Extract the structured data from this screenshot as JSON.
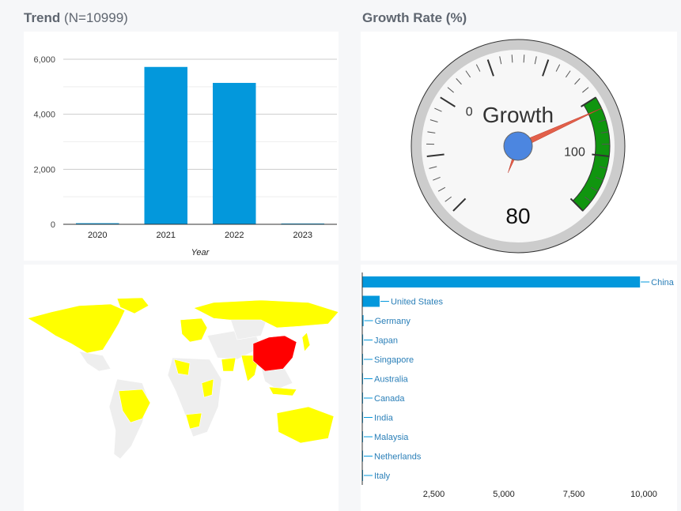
{
  "trend_panel": {
    "title": "Trend",
    "count_label": "(N=10999)"
  },
  "growth_panel": {
    "title": "Growth Rate (%)"
  },
  "colors": {
    "bar": "#0398dc",
    "gauge_green": "#10950f",
    "needle": "#e2604a",
    "hub": "#4c86e0",
    "map_high": "#ff0000",
    "map_low": "#ffff00",
    "map_none": "#eeeeee"
  },
  "chart_data": [
    {
      "type": "bar",
      "title": "",
      "xlabel": "Year",
      "ylabel": "",
      "categories": [
        "2020",
        "2021",
        "2022",
        "2023"
      ],
      "values": [
        40,
        5720,
        5140,
        15
      ],
      "ylim": [
        0,
        6000
      ],
      "yticks": [
        0,
        2000,
        4000,
        6000
      ],
      "ytick_labels": [
        "0",
        "2,000",
        "4,000",
        "6,000"
      ],
      "grid": true
    },
    {
      "type": "gauge",
      "label": "Growth",
      "value": 80,
      "value_label": "80",
      "min": 0,
      "max": 100,
      "min_label": "0",
      "max_label": "100",
      "green_band": [
        75,
        125
      ],
      "dial_range": [
        -50,
        125
      ]
    },
    {
      "type": "bar",
      "orientation": "horizontal",
      "categories": [
        "China",
        "United States",
        "Germany",
        "Japan",
        "Singapore",
        "Australia",
        "Canada",
        "India",
        "Malaysia",
        "Netherlands",
        "Italy"
      ],
      "values": [
        9920,
        620,
        45,
        30,
        20,
        15,
        12,
        10,
        8,
        6,
        5
      ],
      "xlim": [
        0,
        10000
      ],
      "xticks": [
        2500,
        5000,
        7500,
        10000
      ],
      "xtick_labels": [
        "2,500",
        "5,000",
        "7,500",
        "10,000"
      ]
    }
  ],
  "map": {
    "highlight_high": [
      "China"
    ],
    "highlight_low": [
      "United States",
      "Canada",
      "Russia",
      "Brazil",
      "Australia",
      "Germany",
      "Japan",
      "India",
      "Malaysia",
      "Netherlands",
      "Italy",
      "Singapore",
      "Greenland",
      "Nordics",
      "Algeria",
      "Nigeria",
      "Kenya",
      "South Africa",
      "Saudi Arabia"
    ]
  }
}
